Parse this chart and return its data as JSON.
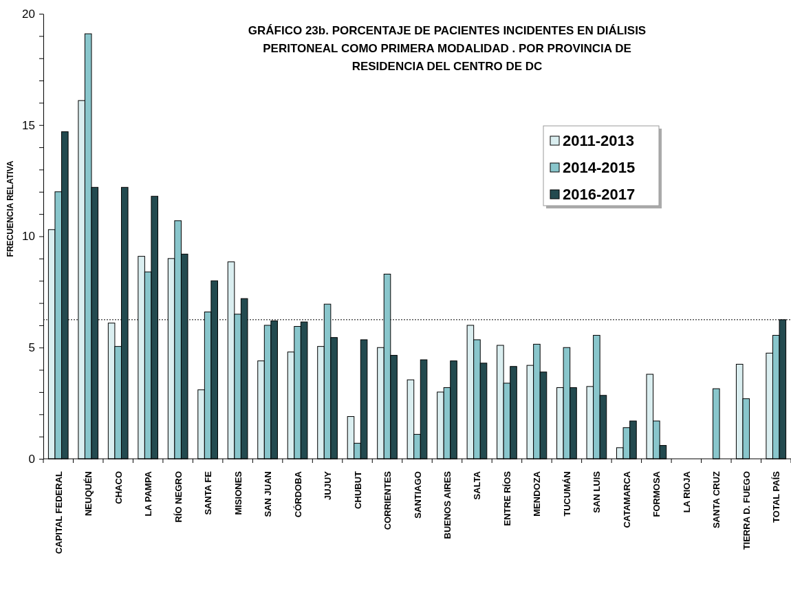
{
  "chart_data": {
    "type": "bar",
    "title": "GRÁFICO 23b. PORCENTAJE DE PACIENTES INCIDENTES  EN DIÁLISIS PERITONEAL COMO PRIMERA MODALIDAD . POR PROVINCIA DE RESIDENCIA DEL CENTRO DE DC",
    "ylabel": "FRECUENCIA RELATIVA",
    "categories": [
      "CAPITAL FEDERAL",
      "NEUQUÉN",
      "CHACO",
      "LA PAMPA",
      "RÍO NEGRO",
      "SANTA FE",
      "MISIONES",
      "SAN JUAN",
      "CÓRDOBA",
      "JUJUY",
      "CHUBUT",
      "CORRIENTES",
      "SANTIAGO",
      "BUENOS AIRES",
      "SALTA",
      "ENTRE RÍOS",
      "MENDOZA",
      "TUCUMÁN",
      "SAN LUIS",
      "CATAMARCA",
      "FORMOSA",
      "LA RIOJA",
      "SANTA CRUZ",
      "TIERRA  D. FUEGO",
      "TOTAL PAÍS"
    ],
    "series": [
      {
        "name": "2011-2013",
        "color": "#daeef0",
        "values": [
          10.3,
          16.1,
          6.1,
          9.1,
          9.0,
          3.1,
          8.85,
          4.4,
          4.8,
          5.05,
          1.9,
          5.0,
          3.55,
          3.0,
          6.0,
          5.1,
          4.2,
          3.2,
          3.25,
          0.5,
          3.8,
          null,
          null,
          4.25,
          4.75
        ]
      },
      {
        "name": "2014-2015",
        "color": "#89c6cc",
        "values": [
          12.0,
          19.1,
          5.05,
          8.4,
          10.7,
          6.6,
          6.5,
          6.0,
          5.95,
          6.95,
          0.7,
          8.3,
          1.1,
          3.2,
          5.35,
          3.4,
          5.15,
          5.0,
          5.55,
          1.4,
          1.7,
          null,
          3.15,
          2.7,
          5.55
        ]
      },
      {
        "name": "2016-2017",
        "color": "#234a4f",
        "values": [
          14.7,
          12.2,
          12.2,
          11.8,
          9.2,
          8.0,
          7.2,
          6.2,
          6.15,
          5.45,
          5.35,
          4.65,
          4.45,
          4.4,
          4.3,
          4.15,
          3.9,
          3.2,
          2.85,
          1.7,
          0.6,
          null,
          null,
          null,
          6.25
        ]
      }
    ],
    "ylim": [
      0,
      20
    ],
    "yticks": [
      0,
      {
        "value": 1,
        "label": null
      },
      {
        "value": 2,
        "label": null
      },
      {
        "value": 3,
        "label": null
      },
      {
        "value": 4,
        "label": null
      },
      5,
      {
        "value": 6,
        "label": null
      },
      {
        "value": 7,
        "label": null
      },
      {
        "value": 8,
        "label": null
      },
      {
        "value": 9,
        "label": null
      },
      10,
      {
        "value": 11,
        "label": null
      },
      {
        "value": 12,
        "label": null
      },
      {
        "value": 13,
        "label": null
      },
      {
        "value": 14,
        "label": null
      },
      15,
      {
        "value": 16,
        "label": null
      },
      {
        "value": 17,
        "label": null
      },
      {
        "value": 18,
        "label": null
      },
      {
        "value": 19,
        "label": null
      },
      20
    ],
    "ref_lines": [
      {
        "axis": "y",
        "value": 6.25,
        "color": "#000000",
        "line_style": "dotted"
      }
    ],
    "legend": "top right",
    "grid": false
  }
}
